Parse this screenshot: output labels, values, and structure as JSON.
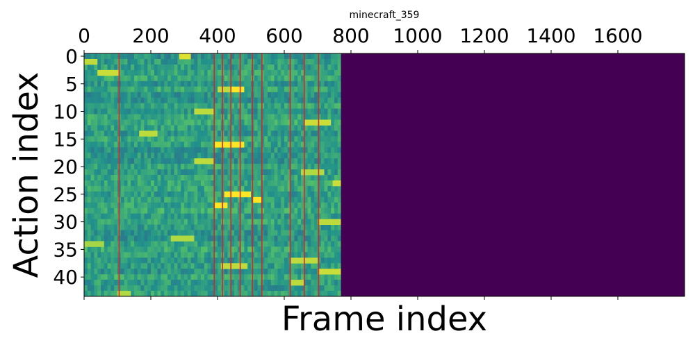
{
  "chart_data": {
    "type": "heatmap",
    "title": "minecraft_359",
    "xlabel": "Frame index",
    "ylabel": "Action index",
    "x_ticks_top": [
      0,
      200,
      400,
      600,
      800,
      1000,
      1200,
      1400,
      1600
    ],
    "y_ticks": [
      0,
      5,
      10,
      15,
      20,
      25,
      30,
      35,
      40
    ],
    "xlim": [
      0,
      1800
    ],
    "ylim": [
      43.5,
      -0.5
    ],
    "rows": 44,
    "data_frames": 770,
    "colormap": "viridis",
    "padding_color": "#440154",
    "marker_color": "#d62728",
    "vertical_markers": [
      105,
      390,
      415,
      440,
      468,
      505,
      533,
      618,
      660,
      703
    ],
    "hot_cells": [
      {
        "x_start": 285,
        "x_end": 320,
        "action": 0,
        "level": 0.95
      },
      {
        "x_start": 0,
        "x_end": 40,
        "action": 1,
        "level": 0.9
      },
      {
        "x_start": 40,
        "x_end": 105,
        "action": 3,
        "level": 0.92
      },
      {
        "x_start": 440,
        "x_end": 480,
        "action": 6,
        "level": 1.0
      },
      {
        "x_start": 400,
        "x_end": 440,
        "action": 6,
        "level": 0.9
      },
      {
        "x_start": 330,
        "x_end": 390,
        "action": 10,
        "level": 0.9
      },
      {
        "x_start": 660,
        "x_end": 740,
        "action": 12,
        "level": 0.92
      },
      {
        "x_start": 165,
        "x_end": 220,
        "action": 14,
        "level": 0.9
      },
      {
        "x_start": 390,
        "x_end": 480,
        "action": 16,
        "level": 1.0
      },
      {
        "x_start": 330,
        "x_end": 390,
        "action": 19,
        "level": 0.9
      },
      {
        "x_start": 650,
        "x_end": 720,
        "action": 21,
        "level": 0.88
      },
      {
        "x_start": 745,
        "x_end": 770,
        "action": 23,
        "level": 0.92
      },
      {
        "x_start": 420,
        "x_end": 500,
        "action": 25,
        "level": 1.0
      },
      {
        "x_start": 390,
        "x_end": 430,
        "action": 27,
        "level": 1.0
      },
      {
        "x_start": 505,
        "x_end": 533,
        "action": 26,
        "level": 1.0
      },
      {
        "x_start": 700,
        "x_end": 770,
        "action": 30,
        "level": 0.9
      },
      {
        "x_start": 260,
        "x_end": 330,
        "action": 33,
        "level": 0.88
      },
      {
        "x_start": 0,
        "x_end": 60,
        "action": 34,
        "level": 0.86
      },
      {
        "x_start": 410,
        "x_end": 490,
        "action": 38,
        "level": 0.9
      },
      {
        "x_start": 620,
        "x_end": 700,
        "action": 37,
        "level": 0.9
      },
      {
        "x_start": 700,
        "x_end": 770,
        "action": 39,
        "level": 0.92
      },
      {
        "x_start": 620,
        "x_end": 660,
        "action": 41,
        "level": 0.9
      },
      {
        "x_start": 100,
        "x_end": 140,
        "action": 43,
        "level": 0.88
      }
    ]
  }
}
